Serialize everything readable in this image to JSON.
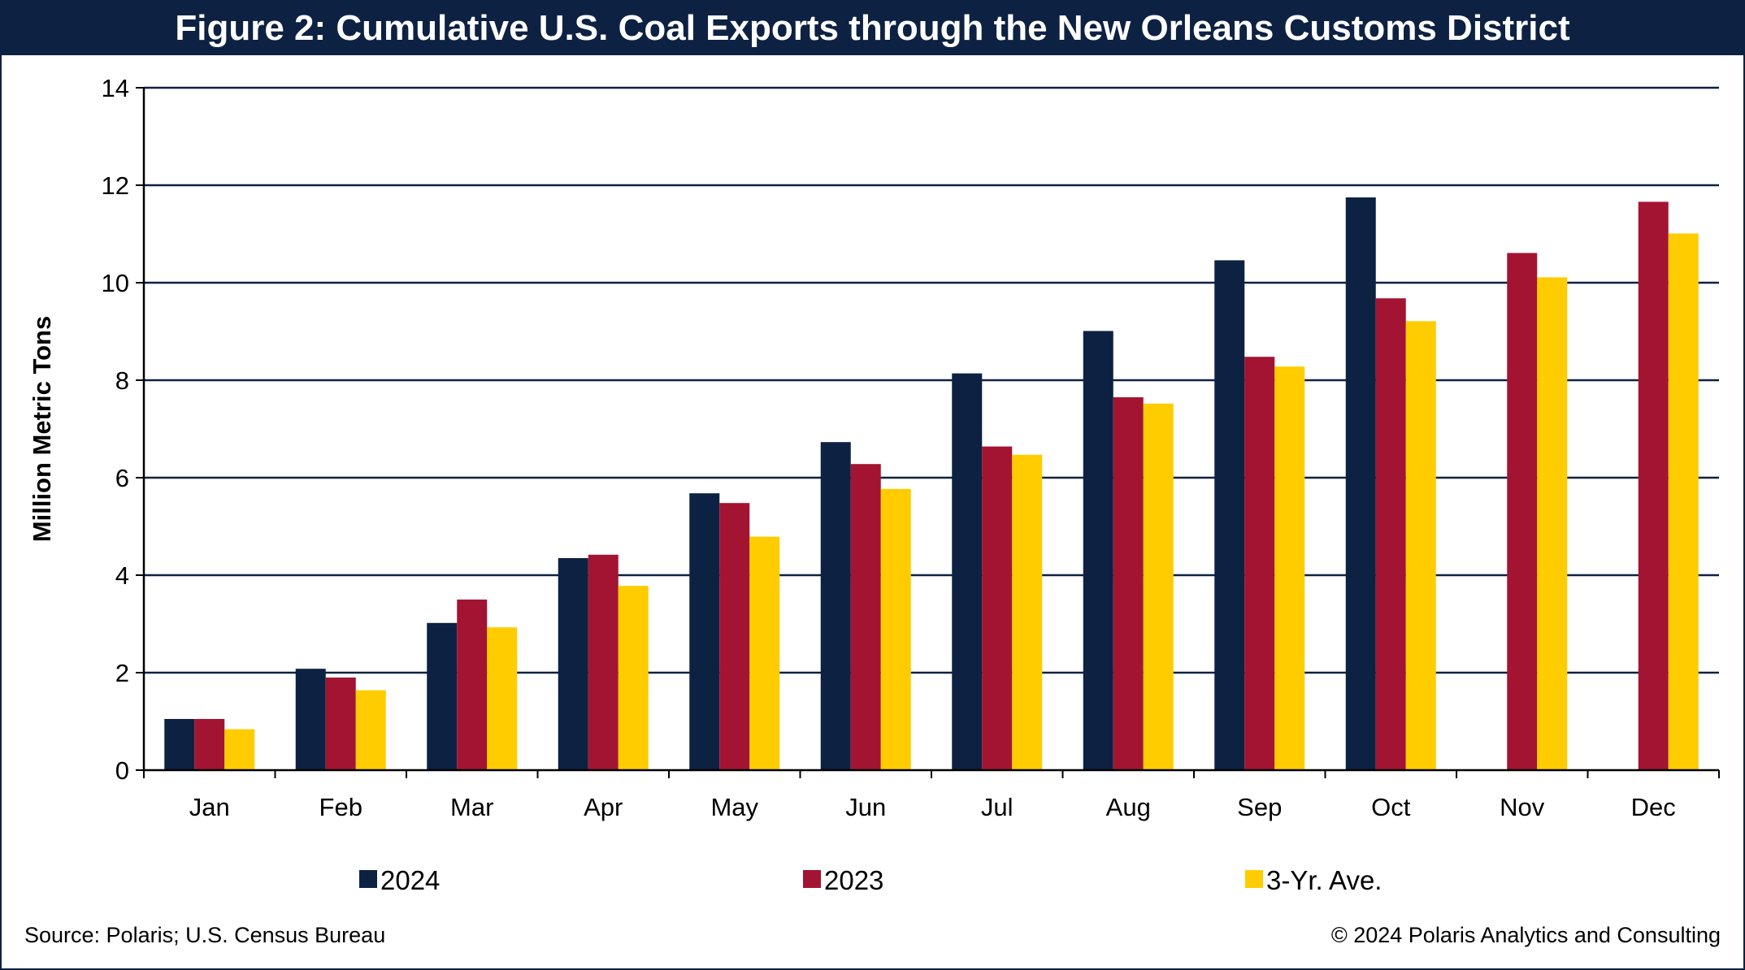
{
  "title": "Figure 2: Cumulative U.S. Coal Exports through the New Orleans Customs District",
  "source": "Source: Polaris; U.S. Census Bureau",
  "copyright": "© 2024 Polaris Analytics and Consulting",
  "chart_data": {
    "type": "bar",
    "title": "Figure 2: Cumulative U.S. Coal Exports through the New Orleans Customs District",
    "xlabel": "",
    "ylabel": "Million Metric Tons",
    "ylim": [
      0,
      14
    ],
    "yticks": [
      "0",
      "2",
      "4",
      "6",
      "8",
      "10",
      "12",
      "14"
    ],
    "grid": true,
    "legend_position": "bottom",
    "categories": [
      "Jan",
      "Feb",
      "Mar",
      "Apr",
      "May",
      "Jun",
      "Jul",
      "Aug",
      "Sep",
      "Oct",
      "Nov",
      "Dec"
    ],
    "series": [
      {
        "name": "2024",
        "color": "#0d2142",
        "values": [
          1.05,
          2.08,
          3.02,
          4.35,
          5.68,
          6.73,
          8.14,
          9.01,
          10.46,
          11.75,
          null,
          null
        ]
      },
      {
        "name": "2023",
        "color": "#a31432",
        "values": [
          1.05,
          1.9,
          3.5,
          4.42,
          5.48,
          6.28,
          6.64,
          7.65,
          8.48,
          9.68,
          10.61,
          11.66
        ]
      },
      {
        "name": "3-Yr. Ave.",
        "color": "#ffcc00",
        "values": [
          0.84,
          1.64,
          2.93,
          3.78,
          4.79,
          5.77,
          6.47,
          7.52,
          8.28,
          9.21,
          10.11,
          11.01
        ]
      }
    ]
  }
}
